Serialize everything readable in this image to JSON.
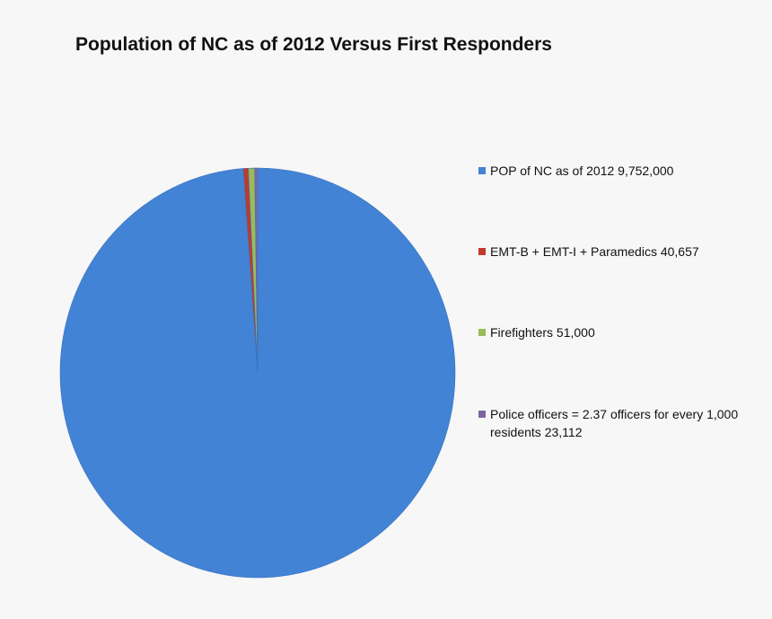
{
  "chart_data": {
    "type": "pie",
    "title": "Population of NC as of 2012 Versus First Responders",
    "categories": [
      "POP of NC as of 2012",
      "EMT-B + EMT-I + Paramedics",
      "Firefighters",
      "Police officers = 2.37 officers for every 1,000 residents"
    ],
    "values": [
      9752000,
      40657,
      51000,
      23112
    ],
    "value_labels": [
      "9,752,000",
      "40,657",
      "51,000",
      "23,112"
    ],
    "colors": [
      "#4283d6",
      "#c0392b",
      "#9bbb59",
      "#8064a2"
    ],
    "legend": "right"
  }
}
